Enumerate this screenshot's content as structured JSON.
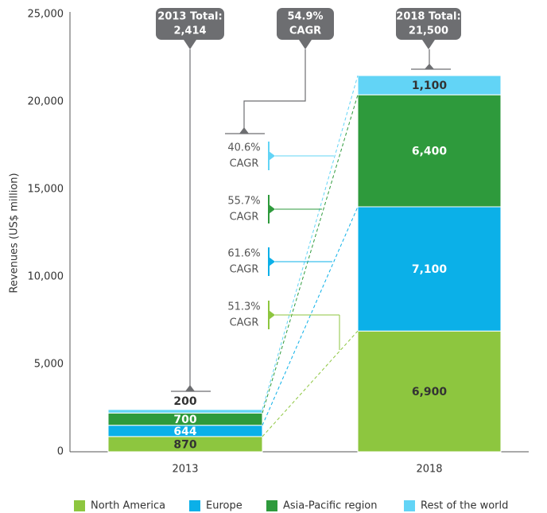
{
  "chart_data": {
    "type": "stacked_bar",
    "ylabel": "Revenues (US$ million)",
    "categories": [
      "2013",
      "2018"
    ],
    "series": [
      {
        "name": "North America",
        "color": "#8dc63f",
        "values": [
          870,
          6900
        ],
        "value_labels": [
          "870",
          "6,900"
        ],
        "cagr": [
          "51.3%",
          "CAGR"
        ]
      },
      {
        "name": "Europe",
        "color": "#0bb0e8",
        "values": [
          644,
          7100
        ],
        "value_labels": [
          "644",
          "7,100"
        ],
        "cagr": [
          "61.6%",
          "CAGR"
        ]
      },
      {
        "name": "Asia-Pacific region",
        "color": "#2e9a3c",
        "values": [
          700,
          6400
        ],
        "value_labels": [
          "700",
          "6,400"
        ],
        "cagr": [
          "55.7%",
          "CAGR"
        ]
      },
      {
        "name": "Rest of the world",
        "color": "#62d4f6",
        "values": [
          200,
          1100
        ],
        "value_labels": [
          "200",
          "1,100"
        ],
        "cagr": [
          "40.6%",
          "CAGR"
        ]
      }
    ],
    "annotations": [
      [
        "2013 Total:",
        "2,414"
      ],
      [
        "54.9%",
        "CAGR"
      ],
      [
        "2018 Total:",
        "21,500"
      ]
    ],
    "ylim": [
      0,
      25000
    ],
    "yticks": [
      0,
      {
        "value": 5000,
        "label": "5,000"
      },
      {
        "value": 10000,
        "label": "10,000"
      },
      {
        "value": 15000,
        "label": "15,000"
      },
      {
        "value": 20000,
        "label": "20,000"
      },
      {
        "value": 25000,
        "label": "25,000"
      }
    ],
    "grid": false,
    "legend": "bottom"
  }
}
